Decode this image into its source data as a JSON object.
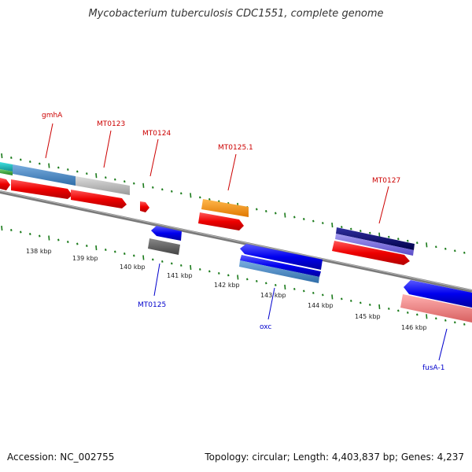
{
  "title": "Mycobacterium tuberculosis CDC1551, complete genome",
  "accession": "Accession: NC_002755",
  "summary": "Topology: circular; Length: 4,403,837 bp; Genes: 4,237",
  "colors": {
    "backbone": "#808080",
    "tick": "#1a7a1a",
    "forward_label": "#cc0000",
    "reverse_label": "#0000cc"
  },
  "kbp_labels": [
    "138 kbp",
    "139 kbp",
    "140 kbp",
    "141 kbp",
    "142 kbp",
    "143 kbp",
    "144 kbp",
    "145 kbp",
    "146 kbp"
  ],
  "gene_labels": [
    {
      "text": "gmhA",
      "strand": "forward"
    },
    {
      "text": "MT0123",
      "strand": "forward"
    },
    {
      "text": "MT0124",
      "strand": "forward"
    },
    {
      "text": "MT0125.1",
      "strand": "forward"
    },
    {
      "text": "MT0127",
      "strand": "forward"
    },
    {
      "text": "MT0125",
      "strand": "reverse"
    },
    {
      "text": "oxc",
      "strand": "reverse"
    },
    {
      "text": "fusA-1",
      "strand": "reverse"
    }
  ]
}
